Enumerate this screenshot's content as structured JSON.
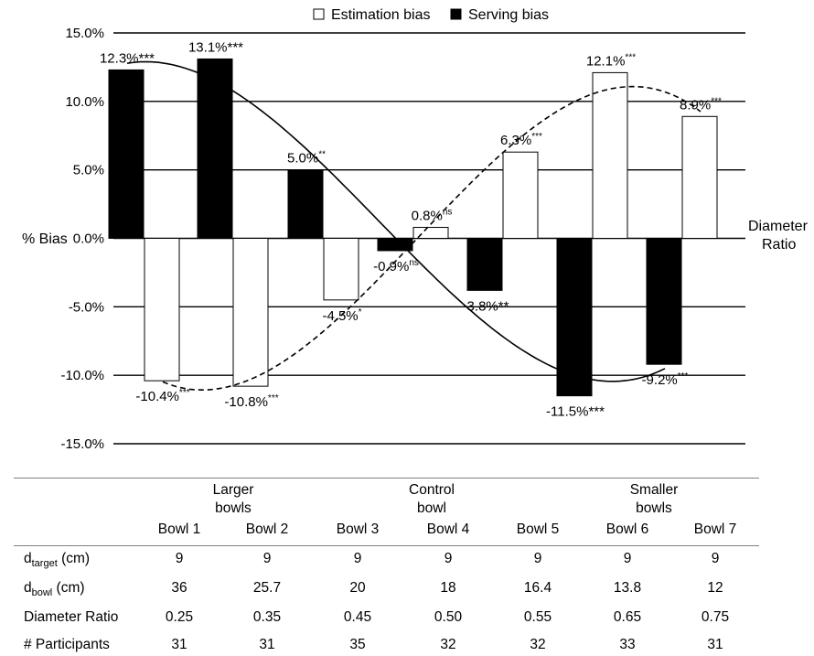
{
  "chart_data": {
    "type": "bar",
    "categories": [
      "Bowl 1",
      "Bowl 2",
      "Bowl 3",
      "Bowl 4",
      "Bowl 5",
      "Bowl 6",
      "Bowl 7"
    ],
    "series": [
      {
        "name": "Estimation bias",
        "color": "#ffffff",
        "values": [
          -10.4,
          -10.8,
          -4.5,
          0.8,
          6.3,
          12.1,
          8.9
        ],
        "labels": [
          {
            "text": "-10.4%",
            "sup": "***"
          },
          {
            "text": "-10.8%",
            "sup": "***"
          },
          {
            "text": "-4.5%",
            "sup": "*"
          },
          {
            "text": "0.8%",
            "sup": "ns"
          },
          {
            "text": "6.3%",
            "sup": "***"
          },
          {
            "text": "12.1%",
            "sup": "***"
          },
          {
            "text": "8.9%",
            "sup": "***"
          }
        ]
      },
      {
        "name": "Serving bias",
        "color": "#000000",
        "values": [
          12.3,
          13.1,
          5.0,
          -0.9,
          -3.8,
          -11.5,
          -9.2
        ],
        "labels": [
          {
            "text": "12.3%***",
            "sup": ""
          },
          {
            "text": "13.1%***",
            "sup": ""
          },
          {
            "text": "5.0%",
            "sup": "**"
          },
          {
            "text": "-0.9%",
            "sup": "ns"
          },
          {
            "text": "-3.8%**",
            "sup": ""
          },
          {
            "text": "-11.5%***",
            "sup": ""
          },
          {
            "text": "-9.2%",
            "sup": "***"
          }
        ]
      }
    ],
    "y_ticks": [
      "15.0%",
      "10.0%",
      "5.0%",
      "0.0%",
      "-5.0%",
      "-10.0%",
      "-15.0%"
    ],
    "ylim": [
      -15,
      15
    ],
    "ylabel": "% Bias",
    "xlabel": "Diameter\nRatio",
    "legend_position": "top",
    "grid": true,
    "trendlines": [
      {
        "series": "Estimation bias",
        "style": "dashed",
        "type": "polynomial"
      },
      {
        "series": "Serving bias",
        "style": "solid",
        "type": "polynomial"
      }
    ]
  },
  "legend": {
    "estimation_label": "Estimation bias",
    "serving_label": "Serving bias"
  },
  "axis": {
    "ylabel": "% Bias",
    "xlabel_line1": "Diameter",
    "xlabel_line2": "Ratio"
  },
  "table": {
    "groups": [
      {
        "line1": "Larger",
        "line2": "bowls"
      },
      {
        "line1": "Control",
        "line2": "bowl"
      },
      {
        "line1": "Smaller",
        "line2": "bowls"
      }
    ],
    "header": [
      "Bowl 1",
      "Bowl 2",
      "Bowl 3",
      "Bowl 4",
      "Bowl 5",
      "Bowl 6",
      "Bowl 7"
    ],
    "rows": [
      {
        "label_main": "d",
        "label_sub": "target",
        "label_rest": " (cm)",
        "values": [
          "9",
          "9",
          "9",
          "9",
          "9",
          "9",
          "9"
        ]
      },
      {
        "label_main": "d",
        "label_sub": "bowl",
        "label_rest": " (cm)",
        "values": [
          "36",
          "25.7",
          "20",
          "18",
          "16.4",
          "13.8",
          "12"
        ]
      },
      {
        "label_main": "Diameter Ratio",
        "label_sub": "",
        "label_rest": "",
        "values": [
          "0.25",
          "0.35",
          "0.45",
          "0.50",
          "0.55",
          "0.65",
          "0.75"
        ]
      },
      {
        "label_main": "# Participants",
        "label_sub": "",
        "label_rest": "",
        "values": [
          "31",
          "31",
          "35",
          "32",
          "32",
          "33",
          "31"
        ]
      }
    ]
  }
}
